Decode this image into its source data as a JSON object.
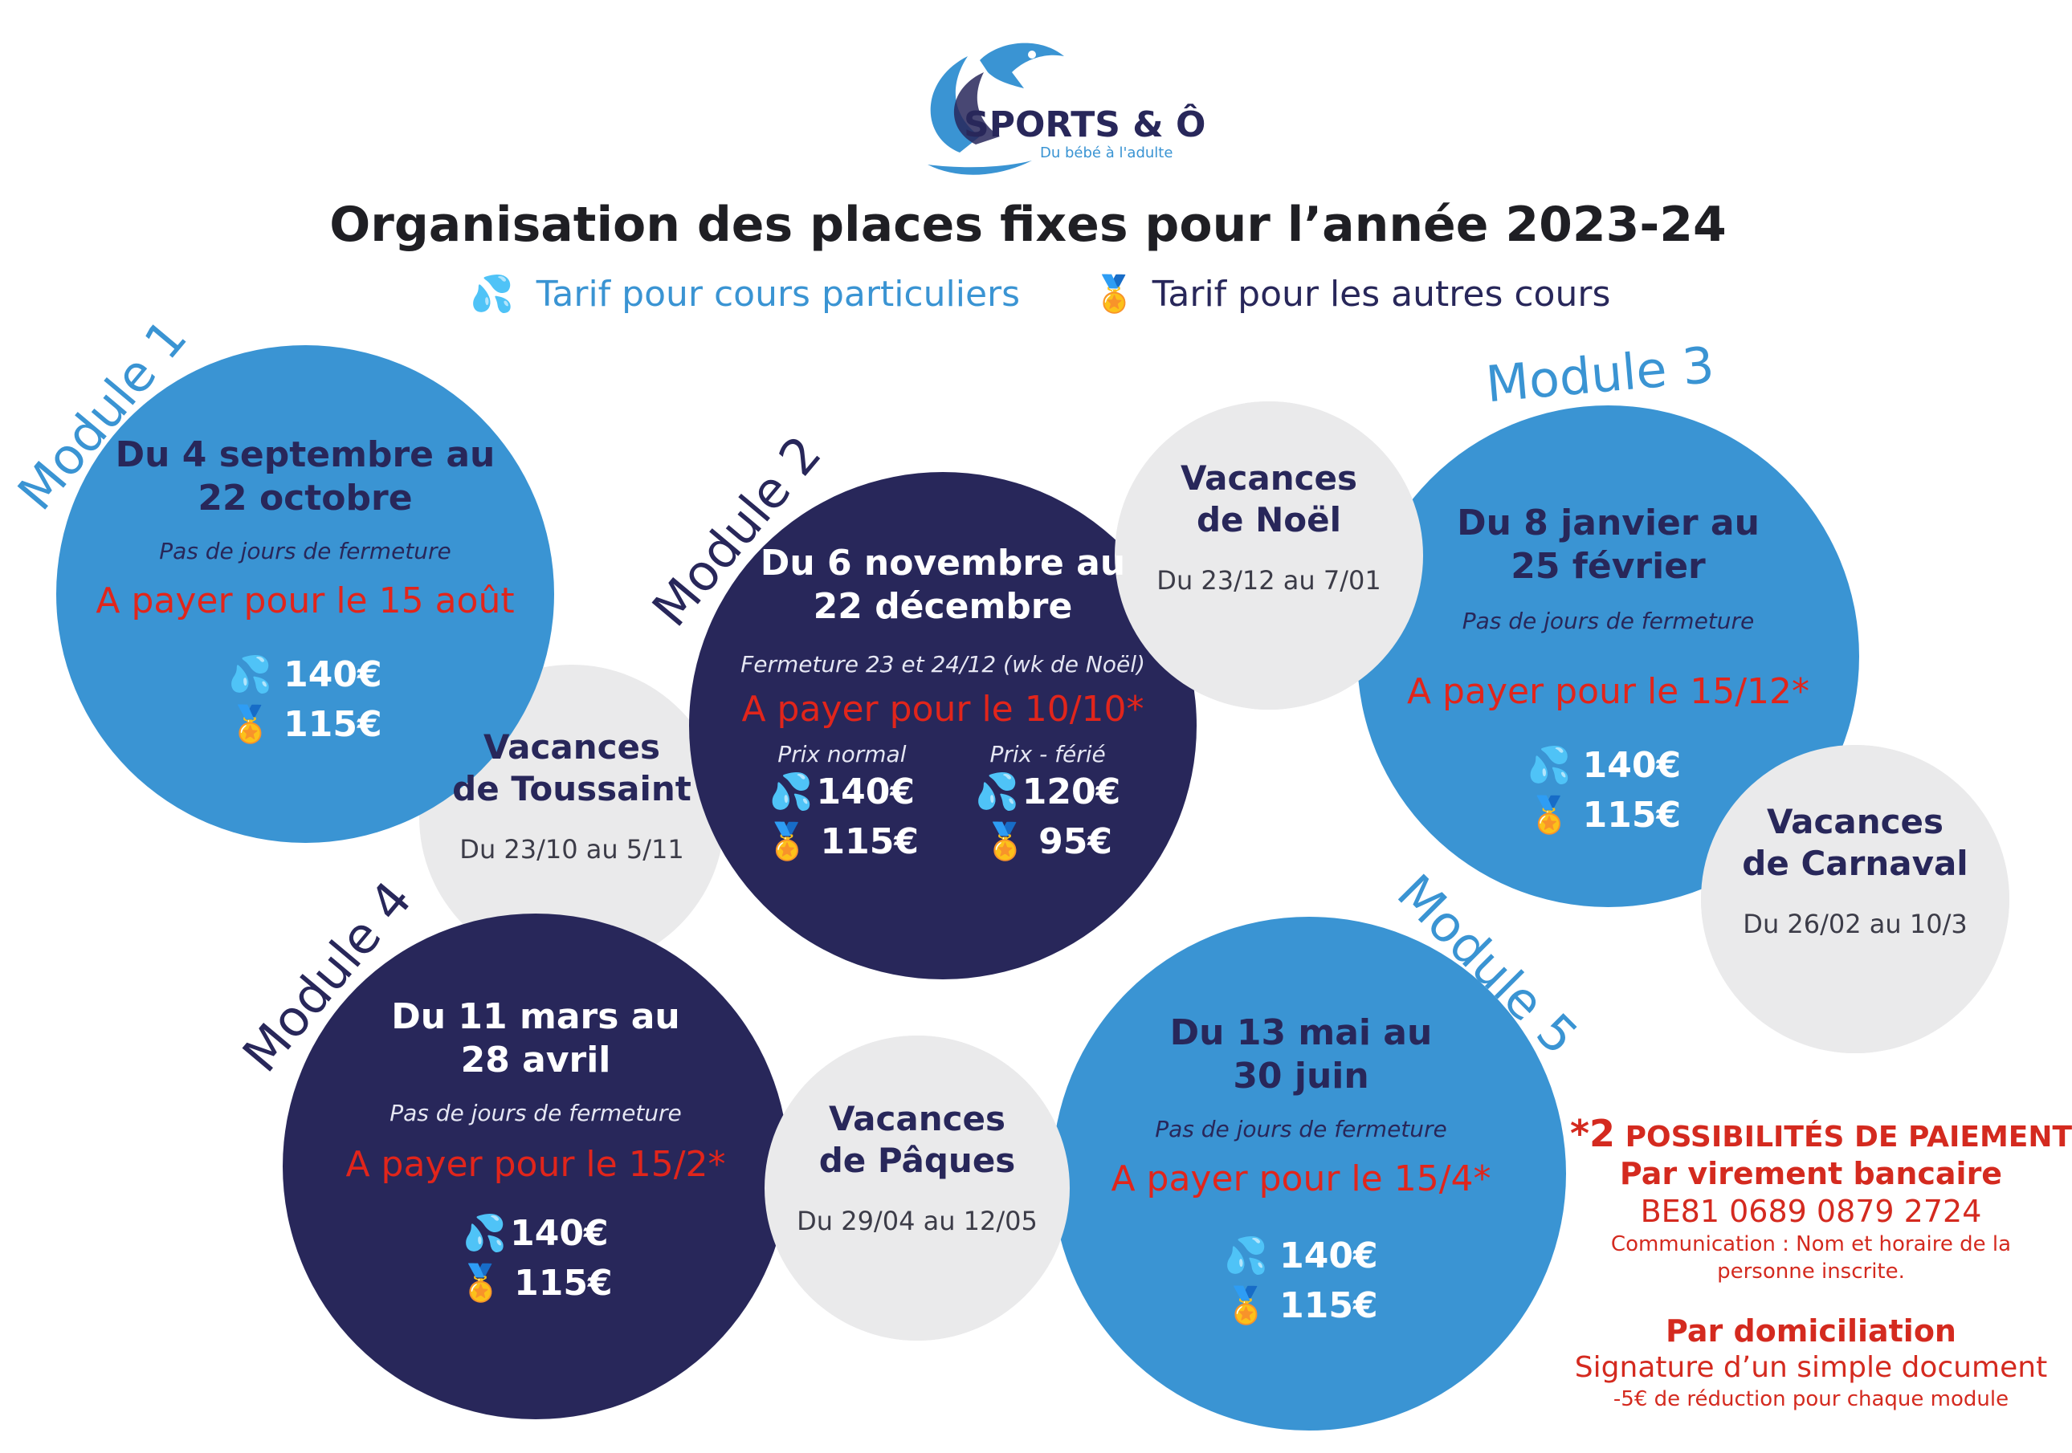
{
  "brand": {
    "name": "SPORTS & Ô",
    "tagline": "Du bébé à l'adulte"
  },
  "title": "Organisation des places fixes pour l’année 2023-24",
  "legend": {
    "private": "Tarif pour cours particuliers",
    "other": "Tarif pour les autres cours"
  },
  "icons": {
    "drop": "💦",
    "medal": "🏅"
  },
  "modules": [
    {
      "label": "Module 1",
      "dates": [
        "Du 4 septembre au",
        "22 octobre"
      ],
      "closure": "Pas de jours de fermeture",
      "pay": "A payer pour le 15 août",
      "private": "140€",
      "other": "115€"
    },
    {
      "label": "Module 2",
      "dates": [
        "Du 6 novembre au",
        "22 décembre"
      ],
      "closure": "Fermeture 23 et 24/12 (wk de Noël)",
      "pay": "A payer pour le 10/10*",
      "normal": {
        "label": "Prix normal",
        "private": "140€",
        "other": "115€"
      },
      "holiday": {
        "label": "Prix - férié",
        "private": "120€",
        "other": "95€"
      }
    },
    {
      "label": "Module 3",
      "dates": [
        "Du 8 janvier au",
        "25 février"
      ],
      "closure": "Pas de jours de fermeture",
      "pay": "A payer pour le 15/12*",
      "private": "140€",
      "other": "115€"
    },
    {
      "label": "Module 4",
      "dates": [
        "Du 11 mars au",
        "28 avril"
      ],
      "closure": "Pas de jours de fermeture",
      "pay": "A payer pour le 15/2*",
      "private": "140€",
      "other": "115€"
    },
    {
      "label": "Module 5",
      "dates": [
        "Du 13 mai au",
        "30 juin"
      ],
      "closure": "Pas de jours de fermeture",
      "pay": "A payer pour le 15/4*",
      "private": "140€",
      "other": "115€"
    }
  ],
  "holidays": [
    {
      "title": [
        "Vacances",
        "de Toussaint"
      ],
      "dates": "Du 23/10 au 5/11"
    },
    {
      "title": [
        "Vacances",
        "de Noël"
      ],
      "dates": "Du 23/12 au 7/01"
    },
    {
      "title": [
        "Vacances",
        "de Carnaval"
      ],
      "dates": "Du 26/02 au 10/3"
    },
    {
      "title": [
        "Vacances",
        "de Pâques"
      ],
      "dates": "Du 29/04 au 12/05"
    }
  ],
  "payment": {
    "heading_prefix": "*2",
    "heading": "POSSIBILITÉS DE PAIEMENT",
    "transfer_title": "Par virement bancaire",
    "iban": "BE81 0689 0879 2724",
    "communication": [
      "Communication : Nom et horaire de la",
      "personne inscrite."
    ],
    "direct_title": "Par domiciliation",
    "direct_text": "Signature d’un simple document",
    "direct_discount": "-5€ de réduction pour chaque module"
  },
  "colors": {
    "light_blue": "#3a94d3",
    "navy": "#28275a",
    "grey": "#eaeaeb",
    "red": "#e1251b"
  }
}
